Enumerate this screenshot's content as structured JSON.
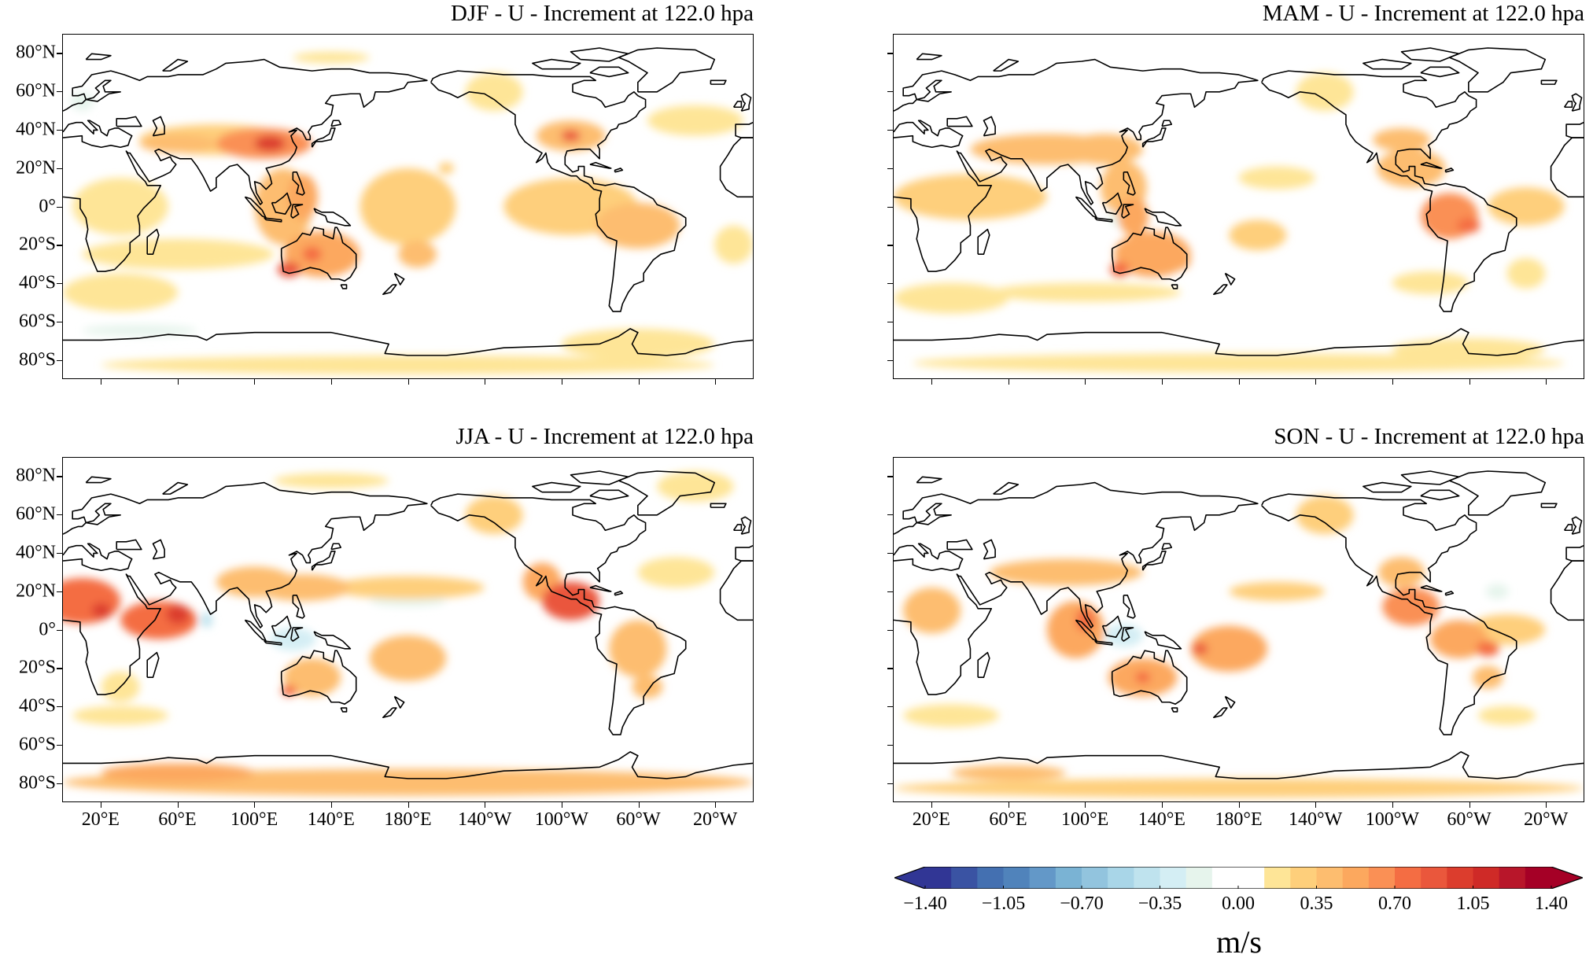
{
  "chart_data": {
    "type": "heatmap",
    "variable": "U increment",
    "panels": [
      {
        "id": "djf",
        "title": "DJF - U - Increment at 122.0 hpa",
        "features": [
          [
            180,
            -83,
            0.15,
            160,
            5
          ],
          [
            300,
            -72,
            0.2,
            40,
            8
          ],
          [
            30,
            -45,
            0.15,
            30,
            10
          ],
          [
            60,
            -25,
            0.15,
            50,
            8
          ],
          [
            30,
            0,
            0.15,
            25,
            15
          ],
          [
            350,
            -20,
            0.15,
            10,
            10
          ],
          [
            330,
            45,
            0.15,
            25,
            8
          ],
          [
            140,
            78,
            0.15,
            20,
            3
          ],
          [
            225,
            60,
            0.2,
            15,
            10
          ],
          [
            180,
            0,
            0.25,
            25,
            20
          ],
          [
            265,
            0,
            0.25,
            35,
            15
          ],
          [
            80,
            35,
            0.3,
            40,
            8
          ],
          [
            200,
            20,
            0.3,
            4,
            3
          ],
          [
            115,
            0,
            0.35,
            15,
            20
          ],
          [
            300,
            -10,
            0.35,
            22,
            12
          ],
          [
            265,
            37,
            0.35,
            18,
            8
          ],
          [
            185,
            -25,
            0.35,
            10,
            7
          ],
          [
            60,
            33,
            0.45,
            20,
            5
          ],
          [
            125,
            5,
            0.5,
            8,
            12
          ],
          [
            135,
            -25,
            0.5,
            20,
            12
          ],
          [
            105,
            33,
            0.6,
            25,
            8
          ],
          [
            130,
            -25,
            0.7,
            5,
            4
          ],
          [
            118,
            -33,
            0.9,
            6,
            4
          ],
          [
            265,
            37,
            0.9,
            5,
            3
          ],
          [
            108,
            33,
            1.0,
            8,
            4
          ],
          [
            120,
            -5,
            -0.2,
            10,
            6
          ],
          [
            10,
            55,
            -0.2,
            6,
            5
          ],
          [
            40,
            -65,
            -0.12,
            30,
            3
          ]
        ]
      },
      {
        "id": "mam",
        "title": "MAM - U - Increment at 122.0 hpa",
        "features": [
          [
            180,
            -82,
            0.2,
            170,
            5
          ],
          [
            300,
            -75,
            0.2,
            40,
            6
          ],
          [
            30,
            -48,
            0.15,
            30,
            8
          ],
          [
            100,
            -45,
            0.15,
            50,
            5
          ],
          [
            225,
            60,
            0.2,
            15,
            10
          ],
          [
            200,
            15,
            0.2,
            20,
            6
          ],
          [
            280,
            -40,
            0.2,
            20,
            6
          ],
          [
            330,
            -35,
            0.2,
            10,
            8
          ],
          [
            40,
            5,
            0.25,
            40,
            12
          ],
          [
            190,
            -15,
            0.25,
            15,
            8
          ],
          [
            330,
            0,
            0.25,
            20,
            10
          ],
          [
            80,
            30,
            0.35,
            40,
            8
          ],
          [
            265,
            35,
            0.35,
            15,
            6
          ],
          [
            120,
            10,
            0.4,
            12,
            14
          ],
          [
            110,
            30,
            0.45,
            20,
            8
          ],
          [
            270,
            20,
            0.45,
            18,
            10
          ],
          [
            125,
            -5,
            0.5,
            8,
            10
          ],
          [
            135,
            -25,
            0.5,
            20,
            12
          ],
          [
            150,
            -28,
            0.5,
            5,
            5
          ],
          [
            290,
            -5,
            0.6,
            15,
            12
          ],
          [
            118,
            -33,
            0.8,
            5,
            4
          ],
          [
            300,
            -10,
            0.8,
            6,
            4
          ],
          [
            120,
            -5,
            -0.2,
            8,
            6
          ]
        ]
      },
      {
        "id": "jja",
        "title": "JJA - U - Increment at 122.0 hpa",
        "features": [
          [
            180,
            -80,
            0.4,
            180,
            7
          ],
          [
            30,
            -30,
            0.15,
            10,
            8
          ],
          [
            30,
            -45,
            0.15,
            25,
            5
          ],
          [
            320,
            30,
            0.15,
            20,
            8
          ],
          [
            330,
            75,
            0.15,
            20,
            8
          ],
          [
            140,
            78,
            0.2,
            30,
            4
          ],
          [
            225,
            60,
            0.25,
            15,
            10
          ],
          [
            180,
            22,
            0.3,
            40,
            6
          ],
          [
            100,
            25,
            0.35,
            20,
            8
          ],
          [
            130,
            -25,
            0.35,
            15,
            10
          ],
          [
            180,
            -15,
            0.35,
            20,
            12
          ],
          [
            305,
            -30,
            0.4,
            8,
            6
          ],
          [
            125,
            22,
            0.45,
            25,
            7
          ],
          [
            300,
            -10,
            0.45,
            15,
            15
          ],
          [
            60,
            -75,
            0.5,
            40,
            5
          ],
          [
            250,
            25,
            0.5,
            10,
            10
          ],
          [
            50,
            5,
            0.7,
            20,
            10
          ],
          [
            118,
            -32,
            0.7,
            4,
            3
          ],
          [
            10,
            15,
            0.8,
            20,
            12
          ],
          [
            265,
            15,
            0.9,
            15,
            10
          ],
          [
            60,
            8,
            1.0,
            6,
            5
          ],
          [
            20,
            10,
            1.0,
            5,
            4
          ],
          [
            75,
            5,
            -0.4,
            3,
            4
          ],
          [
            120,
            -5,
            -0.3,
            12,
            6
          ],
          [
            180,
            15,
            -0.12,
            20,
            3
          ]
        ]
      },
      {
        "id": "son",
        "title": "SON - U - Increment at 122.0 hpa",
        "features": [
          [
            180,
            -83,
            0.3,
            180,
            5
          ],
          [
            30,
            -45,
            0.2,
            25,
            6
          ],
          [
            320,
            -45,
            0.15,
            15,
            5
          ],
          [
            320,
            0,
            0.25,
            20,
            8
          ],
          [
            225,
            60,
            0.25,
            15,
            10
          ],
          [
            200,
            20,
            0.3,
            25,
            5
          ],
          [
            60,
            -75,
            0.35,
            30,
            4
          ],
          [
            20,
            10,
            0.35,
            15,
            12
          ],
          [
            90,
            30,
            0.35,
            40,
            7
          ],
          [
            265,
            30,
            0.35,
            12,
            8
          ],
          [
            310,
            -25,
            0.45,
            8,
            6
          ],
          [
            175,
            -10,
            0.5,
            20,
            12
          ],
          [
            95,
            0,
            0.55,
            15,
            15
          ],
          [
            130,
            -25,
            0.55,
            18,
            10
          ],
          [
            295,
            -5,
            0.55,
            15,
            10
          ],
          [
            270,
            12,
            0.6,
            15,
            10
          ],
          [
            310,
            -10,
            0.7,
            6,
            4
          ],
          [
            100,
            5,
            0.8,
            5,
            6
          ],
          [
            130,
            -25,
            0.8,
            4,
            3
          ],
          [
            160,
            -10,
            0.9,
            4,
            3
          ],
          [
            120,
            -3,
            -0.25,
            10,
            6
          ],
          [
            315,
            20,
            -0.2,
            6,
            4
          ]
        ]
      }
    ],
    "feature_format": [
      "lon_deg_east",
      "lat_deg",
      "value_m_per_s",
      "half_width_deg",
      "half_height_deg"
    ],
    "lon_range": [
      0,
      360
    ],
    "lat_range": [
      -90,
      90
    ],
    "x_ticks": [
      {
        "lon": 20,
        "label": "20°E"
      },
      {
        "lon": 60,
        "label": "60°E"
      },
      {
        "lon": 100,
        "label": "100°E"
      },
      {
        "lon": 140,
        "label": "140°E"
      },
      {
        "lon": 180,
        "label": "180°E"
      },
      {
        "lon": 220,
        "label": "140°W"
      },
      {
        "lon": 260,
        "label": "100°W"
      },
      {
        "lon": 300,
        "label": "60°W"
      },
      {
        "lon": 340,
        "label": "20°W"
      }
    ],
    "y_ticks": [
      {
        "lat": 80,
        "label": "80°N"
      },
      {
        "lat": 60,
        "label": "60°N"
      },
      {
        "lat": 40,
        "label": "40°N"
      },
      {
        "lat": 20,
        "label": "20°N"
      },
      {
        "lat": 0,
        "label": "0°"
      },
      {
        "lat": -20,
        "label": "20°S"
      },
      {
        "lat": -40,
        "label": "40°S"
      },
      {
        "lat": -60,
        "label": "60°S"
      },
      {
        "lat": -80,
        "label": "80°S"
      }
    ],
    "colorbar": {
      "label": "m/s",
      "range": [
        -1.4,
        1.4
      ],
      "extend": "both",
      "ticks": [
        {
          "v": -1.4,
          "label": "−1.40"
        },
        {
          "v": -1.05,
          "label": "−1.05"
        },
        {
          "v": -0.7,
          "label": "−0.70"
        },
        {
          "v": -0.35,
          "label": "−0.35"
        },
        {
          "v": 0,
          "label": "0.00"
        },
        {
          "v": 0.35,
          "label": "0.35"
        },
        {
          "v": 0.7,
          "label": "0.70"
        },
        {
          "v": 1.05,
          "label": "1.05"
        },
        {
          "v": 1.4,
          "label": "1.40"
        }
      ],
      "colors": [
        "#313695",
        "#3a53a3",
        "#4470b1",
        "#5083bb",
        "#6398c8",
        "#7ab3d4",
        "#92c4de",
        "#a9d6e8",
        "#bfe3ee",
        "#d4eef4",
        "#e6f4ec",
        "#ffffff",
        "#ffffff",
        "#fee597",
        "#fecf7b",
        "#fdbd6f",
        "#fca85e",
        "#fa9055",
        "#f46d43",
        "#ea573c",
        "#dc3d2d",
        "#cf2a27",
        "#b8162a",
        "#a50026"
      ],
      "under_color": "#313695",
      "over_color": "#a50026"
    }
  }
}
